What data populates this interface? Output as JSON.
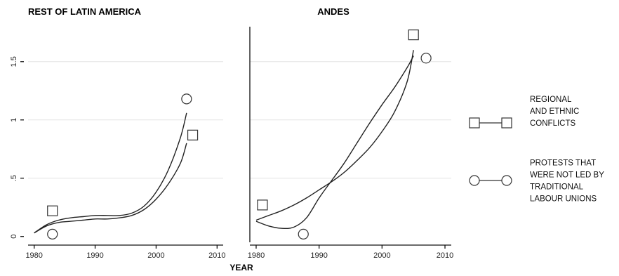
{
  "chart_data": [
    {
      "type": "line",
      "title": "REST OF LATIN AMERICA",
      "xlim": [
        1979,
        2011
      ],
      "ylim": [
        -0.05,
        1.8
      ],
      "xticks": [
        1980,
        1990,
        2000,
        2010
      ],
      "yticks": [
        0,
        0.5,
        1,
        1.5
      ],
      "ytick_labels": [
        "0",
        ".5",
        "1",
        "1.5"
      ],
      "grid": true,
      "series": [
        {
          "name": "REGIONAL AND ETHNIC CONFLICTS",
          "marker": "square",
          "x": [
            1980,
            1982,
            1984,
            1986,
            1988,
            1990,
            1992,
            1994,
            1996,
            1998,
            2000,
            2002,
            2004,
            2005
          ],
          "y": [
            0.03,
            0.09,
            0.12,
            0.13,
            0.14,
            0.15,
            0.15,
            0.16,
            0.18,
            0.23,
            0.32,
            0.45,
            0.63,
            0.8
          ],
          "marker_point": [
            2006,
            0.87
          ]
        },
        {
          "name": "PROTESTS THAT WERE NOT LED BY TRADITIONAL LABOUR UNIONS",
          "marker": "circle",
          "x": [
            1980,
            1982,
            1984,
            1986,
            1988,
            1990,
            1992,
            1994,
            1996,
            1998,
            2000,
            2002,
            2004,
            2005
          ],
          "y": [
            0.03,
            0.1,
            0.14,
            0.16,
            0.17,
            0.18,
            0.18,
            0.18,
            0.2,
            0.26,
            0.38,
            0.57,
            0.85,
            1.06
          ],
          "marker_point": [
            2005,
            1.18
          ]
        }
      ],
      "extra_markers": [
        {
          "shape": "square",
          "x": 1983,
          "y": 0.22
        },
        {
          "shape": "circle",
          "x": 1983,
          "y": 0.02
        }
      ]
    },
    {
      "type": "line",
      "title": "ANDES",
      "xlim": [
        1979,
        2011
      ],
      "ylim": [
        -0.05,
        1.8
      ],
      "xticks": [
        1980,
        1990,
        2000,
        2010
      ],
      "grid": true,
      "series": [
        {
          "name": "REGIONAL AND ETHNIC CONFLICTS",
          "marker": "square",
          "x": [
            1980,
            1982,
            1984,
            1986,
            1988,
            1990,
            1992,
            1994,
            1996,
            1998,
            2000,
            2002,
            2004,
            2005
          ],
          "y": [
            0.14,
            0.18,
            0.22,
            0.27,
            0.33,
            0.4,
            0.47,
            0.55,
            0.65,
            0.76,
            0.9,
            1.07,
            1.33,
            1.6
          ],
          "marker_point": [
            2005,
            1.73
          ]
        },
        {
          "name": "PROTESTS THAT WERE NOT LED BY TRADITIONAL LABOUR UNIONS",
          "marker": "circle",
          "x": [
            1980,
            1982,
            1984,
            1986,
            1988,
            1990,
            1992,
            1994,
            1996,
            1998,
            2000,
            2002,
            2004,
            2005
          ],
          "y": [
            0.13,
            0.09,
            0.07,
            0.08,
            0.16,
            0.33,
            0.48,
            0.63,
            0.8,
            0.97,
            1.13,
            1.28,
            1.45,
            1.55
          ],
          "marker_point": [
            2007,
            1.53
          ]
        }
      ],
      "extra_markers": [
        {
          "shape": "square",
          "x": 1981,
          "y": 0.27
        },
        {
          "shape": "circle",
          "x": 1987.5,
          "y": 0.02
        }
      ]
    }
  ],
  "xlabel": "YEAR",
  "legend": {
    "placement": "right",
    "items": [
      {
        "shape": "square",
        "lines": [
          "REGIONAL",
          "AND ETHNIC",
          "CONFLICTS"
        ]
      },
      {
        "shape": "circle",
        "lines": [
          "PROTESTS THAT",
          "WERE NOT LED BY",
          "TRADITIONAL",
          "LABOUR UNIONS"
        ]
      }
    ]
  }
}
